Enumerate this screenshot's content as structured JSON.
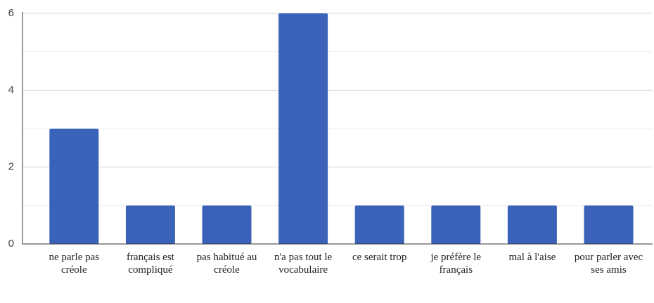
{
  "chart_data": {
    "type": "bar",
    "categories": [
      "ne parle pas créole",
      "français est compliqué",
      "pas habitué au créole",
      "n'a pas tout le vocabulaire",
      "ce serait trop",
      "je préfère le français",
      "mal à l'aise",
      "pour parler avec ses amis"
    ],
    "values": [
      3,
      1,
      1,
      6,
      1,
      1,
      1,
      1
    ],
    "color": "#3a62b9",
    "ylim": [
      0,
      6
    ],
    "yticks": [
      0,
      2,
      4,
      6
    ],
    "minor_yticks": [
      1,
      3,
      5
    ],
    "grid": true
  }
}
